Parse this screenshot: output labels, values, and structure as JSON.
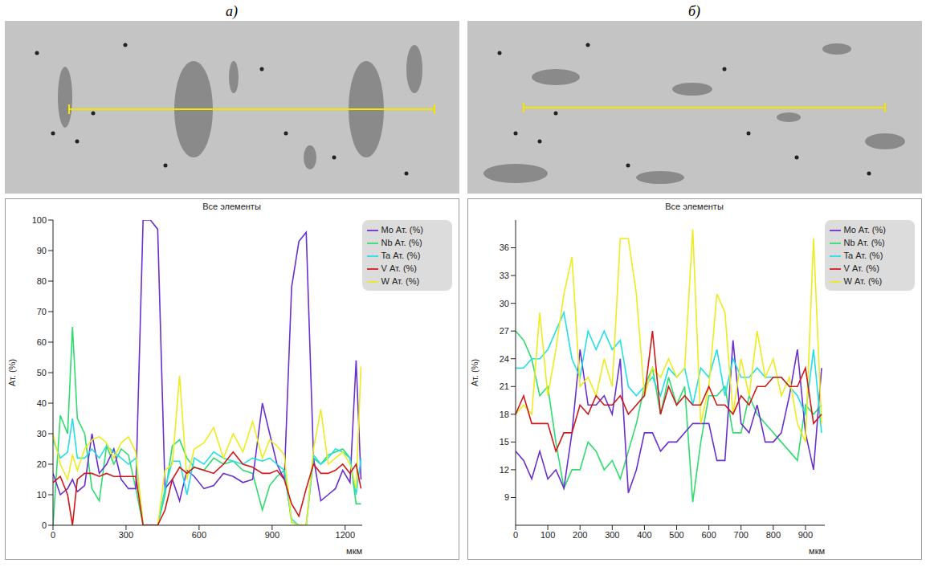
{
  "chart_data": [
    {
      "panel_label": "а)",
      "type": "line",
      "title": "Все элементы",
      "x_label": "мкм",
      "y_label": "Ат. (%)",
      "x": [
        0,
        30,
        60,
        80,
        100,
        130,
        160,
        190,
        220,
        250,
        280,
        310,
        340,
        370,
        400,
        430,
        460,
        490,
        520,
        550,
        580,
        620,
        660,
        700,
        740,
        780,
        820,
        860,
        890,
        920,
        950,
        980,
        1010,
        1040,
        1070,
        1100,
        1130,
        1160,
        1190,
        1220,
        1245,
        1265
      ],
      "xlim": [
        0,
        1270
      ],
      "xticks": [
        0,
        300,
        600,
        900,
        1200
      ],
      "ylim": [
        0,
        100
      ],
      "yticks": [
        0,
        10,
        20,
        30,
        40,
        50,
        60,
        70,
        80,
        90,
        100
      ],
      "grid": false,
      "legend": "right",
      "series": [
        {
          "name": "Nb Ат. (%)",
          "color": "#2fdc6e",
          "values": [
            0,
            36,
            30,
            65,
            35,
            30,
            12,
            8,
            26,
            20,
            25,
            23,
            12,
            0,
            0,
            0,
            10,
            26,
            28,
            22,
            19,
            18,
            22,
            20,
            21,
            18,
            17,
            5,
            13,
            16,
            18,
            1,
            0,
            0,
            22,
            20,
            23,
            24,
            25,
            22,
            7,
            7
          ]
        },
        {
          "name": "Mo Ат. (%)",
          "color": "#6a2fd0",
          "values": [
            17,
            10,
            12,
            15,
            11,
            13,
            30,
            17,
            20,
            25,
            15,
            12,
            12,
            100,
            100,
            97,
            12,
            15,
            8,
            18,
            16,
            12,
            13,
            17,
            16,
            14,
            15,
            40,
            30,
            20,
            15,
            78,
            93,
            96,
            22,
            8,
            10,
            12,
            18,
            14,
            54,
            15
          ]
        },
        {
          "name": "Ta Ат. (%)",
          "color": "#22dfe6",
          "values": [
            28,
            22,
            24,
            35,
            22,
            22,
            25,
            22,
            26,
            24,
            22,
            20,
            22,
            0,
            0,
            0,
            12,
            21,
            21,
            10,
            22,
            20,
            24,
            22,
            21,
            20,
            22,
            21,
            22,
            20,
            18,
            2,
            0,
            0,
            23,
            20,
            22,
            25,
            24,
            22,
            10,
            22
          ]
        },
        {
          "name": "W Ат. (%)",
          "color": "#ecec1e",
          "values": [
            30,
            20,
            15,
            23,
            18,
            25,
            28,
            29,
            27,
            22,
            27,
            29,
            24,
            0,
            0,
            0,
            18,
            20,
            49,
            15,
            25,
            27,
            32,
            22,
            30,
            24,
            34,
            22,
            28,
            26,
            23,
            1,
            0,
            0,
            25,
            38,
            20,
            22,
            24,
            20,
            12,
            52
          ]
        },
        {
          "name": "V Ат. (%)",
          "color": "#d01818",
          "values": [
            14,
            16,
            10,
            0,
            15,
            17,
            17,
            16,
            17,
            16,
            16,
            16,
            16,
            0,
            0,
            0,
            5,
            15,
            19,
            17,
            19,
            18,
            17,
            20,
            24,
            20,
            19,
            17,
            17,
            18,
            15,
            7,
            3,
            12,
            20,
            17,
            17,
            18,
            20,
            17,
            20,
            12
          ]
        }
      ]
    },
    {
      "panel_label": "б)",
      "type": "line",
      "title": "Все элементы",
      "x_label": "мкм",
      "y_label": "Ат. (%)",
      "x": [
        0,
        25,
        50,
        75,
        100,
        125,
        150,
        175,
        200,
        225,
        250,
        275,
        300,
        325,
        350,
        375,
        400,
        425,
        450,
        475,
        500,
        525,
        550,
        575,
        600,
        625,
        650,
        675,
        700,
        725,
        750,
        775,
        800,
        825,
        850,
        875,
        900,
        925,
        950
      ],
      "xlim": [
        0,
        960
      ],
      "xticks": [
        0,
        100,
        200,
        300,
        400,
        500,
        600,
        700,
        800,
        900
      ],
      "ylim": [
        6,
        39
      ],
      "yticks": [
        9,
        12,
        15,
        18,
        21,
        24,
        27,
        30,
        33,
        36
      ],
      "grid": false,
      "legend": "right",
      "series": [
        {
          "name": "Nb Ат. (%)",
          "color": "#2fdc6e",
          "values": [
            27,
            26,
            24,
            20,
            21,
            15,
            10,
            12,
            12,
            15,
            14,
            12,
            13,
            11,
            14,
            17,
            21,
            23,
            18,
            22,
            19,
            21,
            8.5,
            15,
            20,
            20,
            21,
            16,
            16,
            20,
            18,
            17,
            16,
            15,
            14,
            13,
            19,
            18,
            19
          ]
        },
        {
          "name": "Mo Ат. (%)",
          "color": "#6a2fd0",
          "values": [
            14,
            13,
            11,
            14,
            11,
            12,
            10,
            16,
            25,
            19,
            19,
            20,
            18,
            24,
            9.5,
            12,
            16,
            16,
            14,
            15,
            15,
            16,
            17,
            17,
            17,
            13,
            13,
            26,
            17,
            16,
            19,
            15,
            15,
            16,
            20,
            25,
            16,
            12,
            23
          ]
        },
        {
          "name": "Ta Ат. (%)",
          "color": "#22dfe6",
          "values": [
            23,
            23,
            24,
            24,
            25,
            27,
            29,
            24,
            22,
            27,
            25,
            27,
            25,
            26,
            21,
            20,
            21,
            22,
            20,
            23,
            22,
            23,
            19,
            23,
            22,
            25,
            20,
            24,
            22,
            22,
            23,
            22,
            22,
            22,
            21,
            20,
            18,
            25,
            16
          ]
        },
        {
          "name": "W Ат. (%)",
          "color": "#ecec1e",
          "values": [
            18,
            19,
            18,
            29,
            20,
            25,
            31,
            35,
            21,
            22,
            20,
            24,
            21,
            37,
            37,
            31,
            20,
            23,
            22,
            24,
            22,
            23,
            38,
            17,
            21,
            31,
            29,
            18,
            24,
            20,
            27,
            22,
            24,
            20,
            22,
            17,
            15,
            37,
            17
          ]
        },
        {
          "name": "V Ат. (%)",
          "color": "#d01818",
          "values": [
            18,
            20,
            17,
            17,
            17,
            14,
            16,
            16,
            19,
            18,
            20,
            19,
            19,
            20,
            18,
            19,
            20,
            27,
            18,
            21,
            19,
            20,
            19,
            19,
            21,
            19,
            19,
            18,
            20,
            19,
            21,
            21,
            22,
            22,
            21,
            21,
            23,
            17,
            18
          ]
        }
      ]
    }
  ]
}
